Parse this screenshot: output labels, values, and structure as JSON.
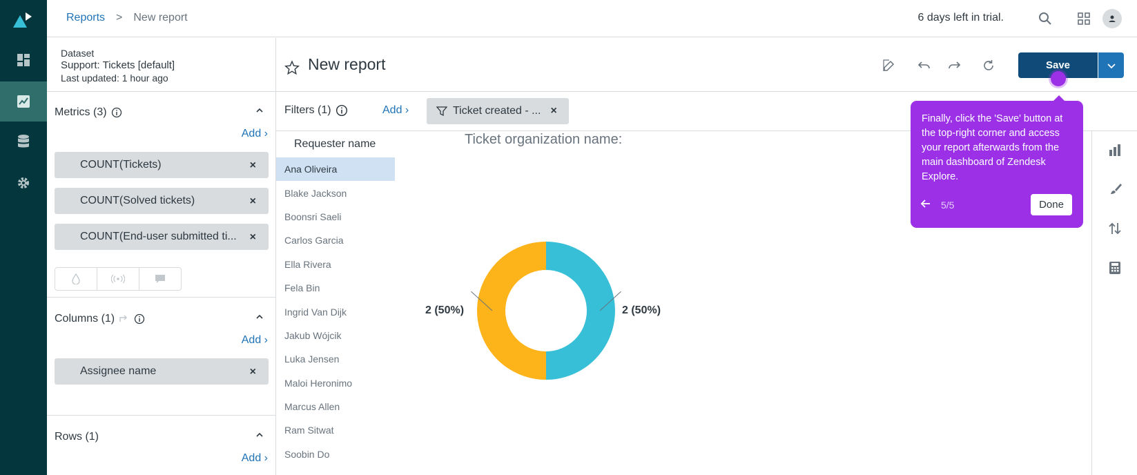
{
  "breadcrumb": {
    "parent": "Reports",
    "separator": ">",
    "current": "New report"
  },
  "header": {
    "trial_text": "6 days left in trial."
  },
  "dataset": {
    "label": "Dataset",
    "name": "Support: Tickets [default]",
    "updated": "Last updated: 1 hour ago"
  },
  "metrics": {
    "title": "Metrics (3)",
    "add_label": "Add ›",
    "items": [
      "COUNT(Tickets)",
      "COUNT(Solved tickets)",
      "COUNT(End-user submitted ti..."
    ]
  },
  "columns": {
    "title": "Columns (1)",
    "add_label": "Add ›",
    "items": [
      "Assignee name"
    ]
  },
  "rows": {
    "title": "Rows (1)",
    "add_label": "Add ›"
  },
  "report": {
    "title": "New report",
    "save_label": "Save"
  },
  "filters": {
    "title": "Filters (1)",
    "add_label": "Add ›",
    "pill_label": "Ticket created - ..."
  },
  "requester": {
    "header": "Requester name",
    "items": [
      "Ana Oliveira",
      "Blake Jackson",
      "Boonsri Saeli",
      "Carlos Garcia",
      "Ella Rivera",
      "Fela Bin",
      "Ingrid Van Dijk",
      "Jakub Wójcik",
      "Luka Jensen",
      "Maloi Heronimo",
      "Marcus Allen",
      "Ram Sitwat",
      "Soobin Do"
    ],
    "selected_index": 0
  },
  "chart_data": {
    "type": "pie",
    "title": "Ticket organization name:",
    "slices": [
      {
        "value": 2,
        "percent": 50,
        "label": "2 (50%)",
        "color": "#37bfd8"
      },
      {
        "value": 2,
        "percent": 50,
        "label": "2 (50%)",
        "color": "#fdb31a"
      }
    ]
  },
  "tooltip": {
    "text": "Finally, click the 'Save' button at the top-right corner and access your report afterwards from the main dashboard of Zendesk Explore.",
    "step": "5/5",
    "done_label": "Done"
  },
  "colors": {
    "rail": "#03363d",
    "accent": "#1f73b7",
    "save": "#0f4a78",
    "tooltip": "#9b30e6"
  }
}
